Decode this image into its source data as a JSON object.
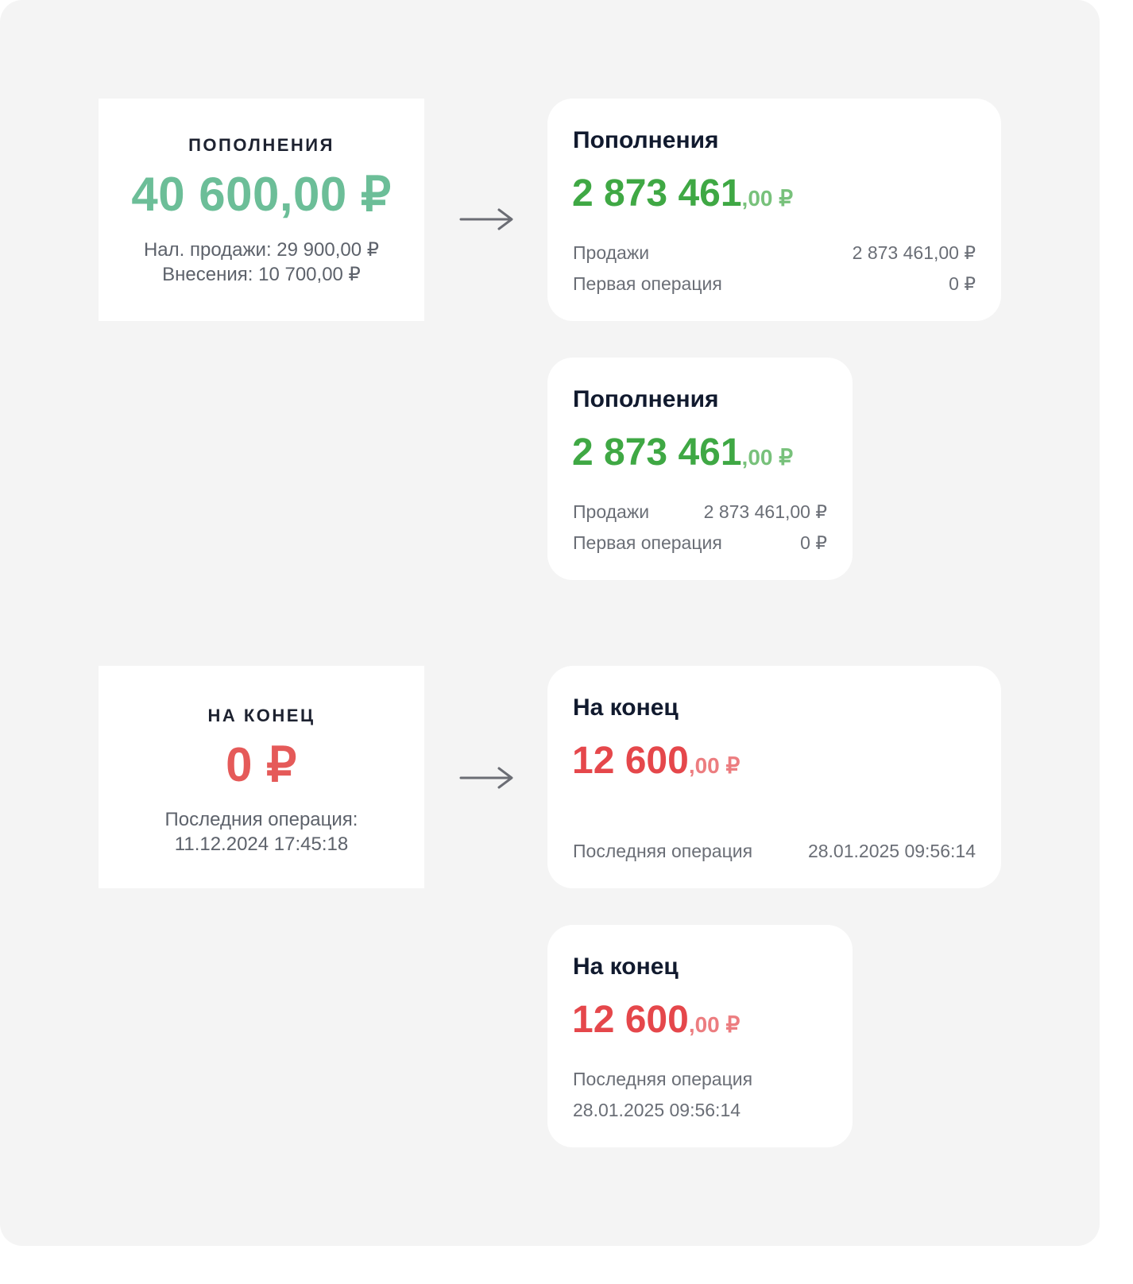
{
  "replenishment": {
    "old": {
      "title": "ПОПОЛНЕНИЯ",
      "amount": "40 600,00 ₽",
      "cash_sales": "Нал. продажи: 29 900,00 ₽",
      "deposits": "Внесения: 10 700,00 ₽"
    },
    "new": {
      "title": "Пополнения",
      "amount_whole": "2 873 461",
      "amount_fraction": ",00 ₽",
      "sales_label": "Продажи",
      "sales_value": "2 873 461,00 ₽",
      "first_op_label": "Первая операция",
      "first_op_value": "0 ₽"
    }
  },
  "ending": {
    "old": {
      "title": "НА КОНЕЦ",
      "amount": "0 ₽",
      "last_op_label": "Последния операция:",
      "last_op_value": "11.12.2024 17:45:18"
    },
    "new": {
      "title": "На конец",
      "amount_whole": "12 600",
      "amount_fraction": ",00 ₽",
      "last_op_label": "Последняя операция",
      "last_op_value": "28.01.2025 09:56:14"
    }
  },
  "colors": {
    "background": "#f4f4f4",
    "old_positive": "#6cbe98",
    "old_negative": "#e55a59",
    "new_positive": "#3fa844",
    "new_negative": "#e5474b",
    "title": "#111a2e",
    "secondary_text": "#6a6e76"
  },
  "icons": {
    "transition": "arrow-right-icon"
  }
}
